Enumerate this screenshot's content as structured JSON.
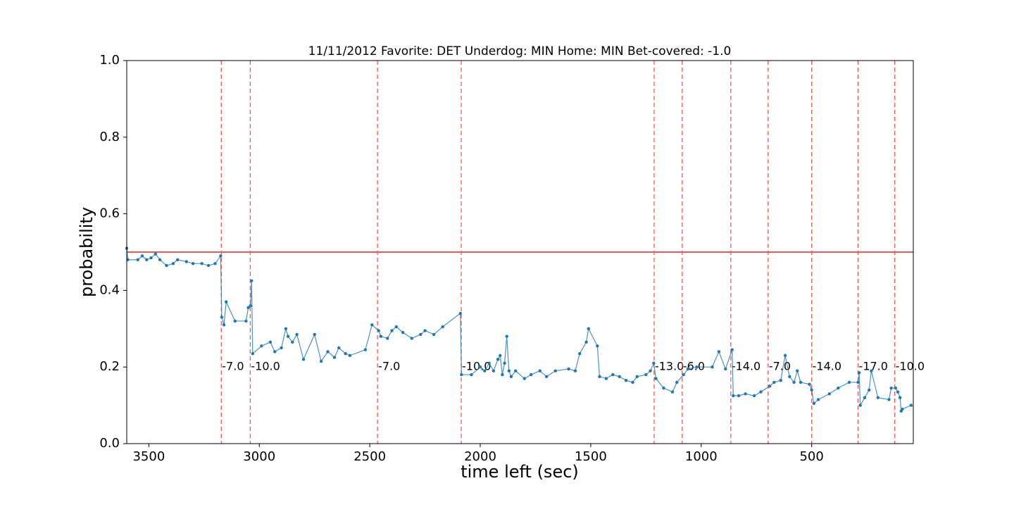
{
  "chart_data": {
    "type": "line",
    "title": "11/11/2012 Favorite: DET Underdog: MIN Home: MIN Bet-covered: -1.0",
    "x_label": "time left (sec)",
    "y_label": "probability",
    "xlim": [
      3600,
      40
    ],
    "ylim": [
      0,
      1
    ],
    "xticks": [
      3500,
      3000,
      2500,
      2000,
      1500,
      1000,
      500
    ],
    "yticks": [
      {
        "value": 0,
        "label": "0.0"
      },
      0.2,
      0.4,
      0.6,
      0.8,
      {
        "value": 1,
        "label": "1.0"
      }
    ],
    "x": [
      3600,
      3595,
      3550,
      3530,
      3510,
      3490,
      3470,
      3450,
      3420,
      3390,
      3370,
      3330,
      3300,
      3260,
      3230,
      3200,
      3175,
      3170,
      3160,
      3150,
      3110,
      3060,
      3050,
      3040,
      3035,
      3030,
      2990,
      2950,
      2930,
      2900,
      2880,
      2870,
      2850,
      2830,
      2800,
      2750,
      2720,
      2690,
      2660,
      2640,
      2610,
      2590,
      2520,
      2490,
      2460,
      2450,
      2420,
      2400,
      2380,
      2350,
      2310,
      2270,
      2250,
      2210,
      2170,
      2090,
      2085,
      2040,
      2000,
      1980,
      1960,
      1940,
      1920,
      1910,
      1900,
      1890,
      1880,
      1870,
      1860,
      1840,
      1800,
      1770,
      1730,
      1700,
      1660,
      1600,
      1570,
      1550,
      1520,
      1510,
      1470,
      1460,
      1430,
      1400,
      1370,
      1340,
      1310,
      1290,
      1250,
      1230,
      1215,
      1205,
      1170,
      1130,
      1110,
      1080,
      1060,
      1020,
      950,
      920,
      890,
      860,
      855,
      830,
      800,
      760,
      730,
      690,
      670,
      640,
      620,
      600,
      580,
      565,
      550,
      510,
      500,
      490,
      470,
      420,
      380,
      330,
      290,
      285,
      280,
      260,
      240,
      230,
      200,
      150,
      140,
      120,
      110,
      100,
      95,
      90,
      50
    ],
    "series": [
      {
        "name": "probability",
        "color": "#1f77b4",
        "values": [
          0.51,
          0.48,
          0.48,
          0.49,
          0.48,
          0.485,
          0.495,
          0.48,
          0.465,
          0.47,
          0.48,
          0.475,
          0.47,
          0.47,
          0.465,
          0.47,
          0.49,
          0.33,
          0.31,
          0.37,
          0.32,
          0.32,
          0.355,
          0.36,
          0.425,
          0.235,
          0.255,
          0.265,
          0.24,
          0.25,
          0.3,
          0.28,
          0.265,
          0.285,
          0.22,
          0.285,
          0.215,
          0.24,
          0.225,
          0.25,
          0.235,
          0.23,
          0.245,
          0.31,
          0.295,
          0.28,
          0.275,
          0.295,
          0.305,
          0.29,
          0.275,
          0.285,
          0.295,
          0.285,
          0.305,
          0.34,
          0.18,
          0.18,
          0.2,
          0.19,
          0.21,
          0.19,
          0.22,
          0.23,
          0.18,
          0.21,
          0.28,
          0.19,
          0.175,
          0.19,
          0.17,
          0.18,
          0.19,
          0.175,
          0.19,
          0.195,
          0.19,
          0.235,
          0.265,
          0.3,
          0.255,
          0.175,
          0.17,
          0.18,
          0.175,
          0.165,
          0.16,
          0.175,
          0.18,
          0.19,
          0.21,
          0.17,
          0.145,
          0.135,
          0.16,
          0.18,
          0.195,
          0.2,
          0.2,
          0.24,
          0.195,
          0.245,
          0.125,
          0.125,
          0.13,
          0.125,
          0.135,
          0.15,
          0.16,
          0.165,
          0.23,
          0.175,
          0.16,
          0.19,
          0.16,
          0.155,
          0.14,
          0.105,
          0.115,
          0.13,
          0.145,
          0.16,
          0.16,
          0.185,
          0.1,
          0.12,
          0.14,
          0.19,
          0.12,
          0.115,
          0.145,
          0.145,
          0.135,
          0.12,
          0.085,
          0.09,
          0.1
        ]
      }
    ],
    "reference_line": {
      "y": 0.5,
      "color": "#d62728"
    },
    "event_lines": {
      "color": "#ff5555",
      "label_y": 0.2,
      "x": [
        3172,
        3041,
        2465,
        2086,
        1213,
        1086,
        866,
        697,
        500,
        290,
        124
      ],
      "labels": [
        "-7.0",
        "-10.0",
        "-7.0",
        "-10.0",
        "-13.0",
        "-6.0",
        "-14.0",
        "-7.0",
        "-14.0",
        "-17.0",
        "-10.0"
      ]
    }
  }
}
